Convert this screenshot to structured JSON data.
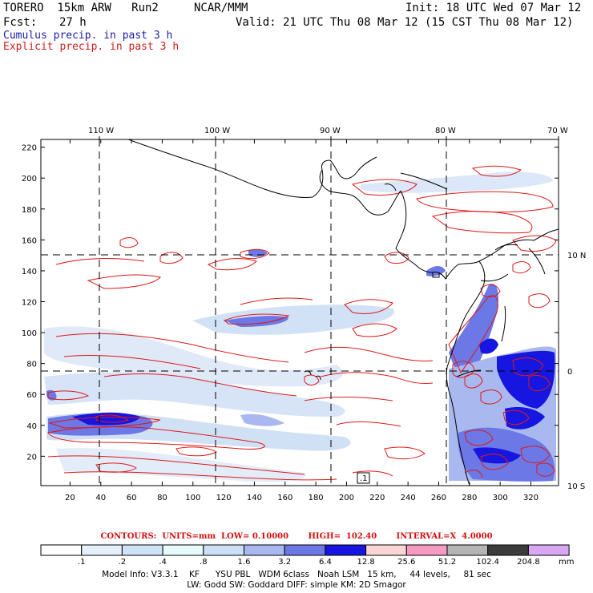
{
  "header": {
    "model": "TORERO  15km ARW   Run2",
    "org": "NCAR/MMM",
    "init": "Init: 18 UTC Wed 07 Mar 12",
    "fcst_label": "Fcst:",
    "fcst_value": "27 h",
    "valid": "Valid: 21 UTC Thu 08 Mar 12 (15 CST Thu 08 Mar 12)",
    "line_cumulus": "Cumulus precip. in past 3 h",
    "line_explicit": "Explicit precip. in past 3 h"
  },
  "colors": {
    "cumulus_text": "#1c1ca8",
    "explicit_text": "#d02020",
    "contour": "#e01818",
    "grid": "#000000"
  },
  "map": {
    "top_lon_labels": [
      "110 W",
      "100 W",
      "90 W",
      "80 W",
      "70 W"
    ],
    "left_y_labels": [
      "220",
      "200",
      "180",
      "160",
      "140",
      "120",
      "100",
      "80",
      "60",
      "40",
      "20"
    ],
    "bottom_x_labels": [
      "20",
      "40",
      "60",
      "80",
      "100",
      "120",
      "140",
      "160",
      "180",
      "200",
      "220",
      "240",
      "260",
      "280",
      "300",
      "320"
    ],
    "right_lat_labels": [
      "10 N",
      "0",
      "10 S"
    ],
    "box_label": ".1"
  },
  "legend": {
    "contours_line": "CONTOURS:  UNITS=mm  LOW= 0.10000       HIGH=  102.40       INTERVAL=X  4.0000",
    "labels": [
      ".1",
      ".2",
      ".4",
      ".8",
      "1.6",
      "3.2",
      "6.4",
      "12.8",
      "25.6",
      "51.2",
      "102.4",
      "204.8"
    ],
    "colors": [
      "#ffffff",
      "#e6f0fb",
      "#cfe3f7",
      "#e8fbfb",
      "#cddff6",
      "#a9b8ee",
      "#6b78e6",
      "#1616e0",
      "#fbd4d4",
      "#f59ac0",
      "#b4b4b4",
      "#3c3c3c",
      "#d9a8f2"
    ],
    "unit": "mm"
  },
  "footer": {
    "line1": "Model Info: V3.3.1    KF      YSU PBL   WDM 6class   Noah LSM   15 km,     44 levels,     81 sec",
    "line2": "LW: Godd SW: Goddard DIFF: simple KM: 2D Smagor"
  }
}
